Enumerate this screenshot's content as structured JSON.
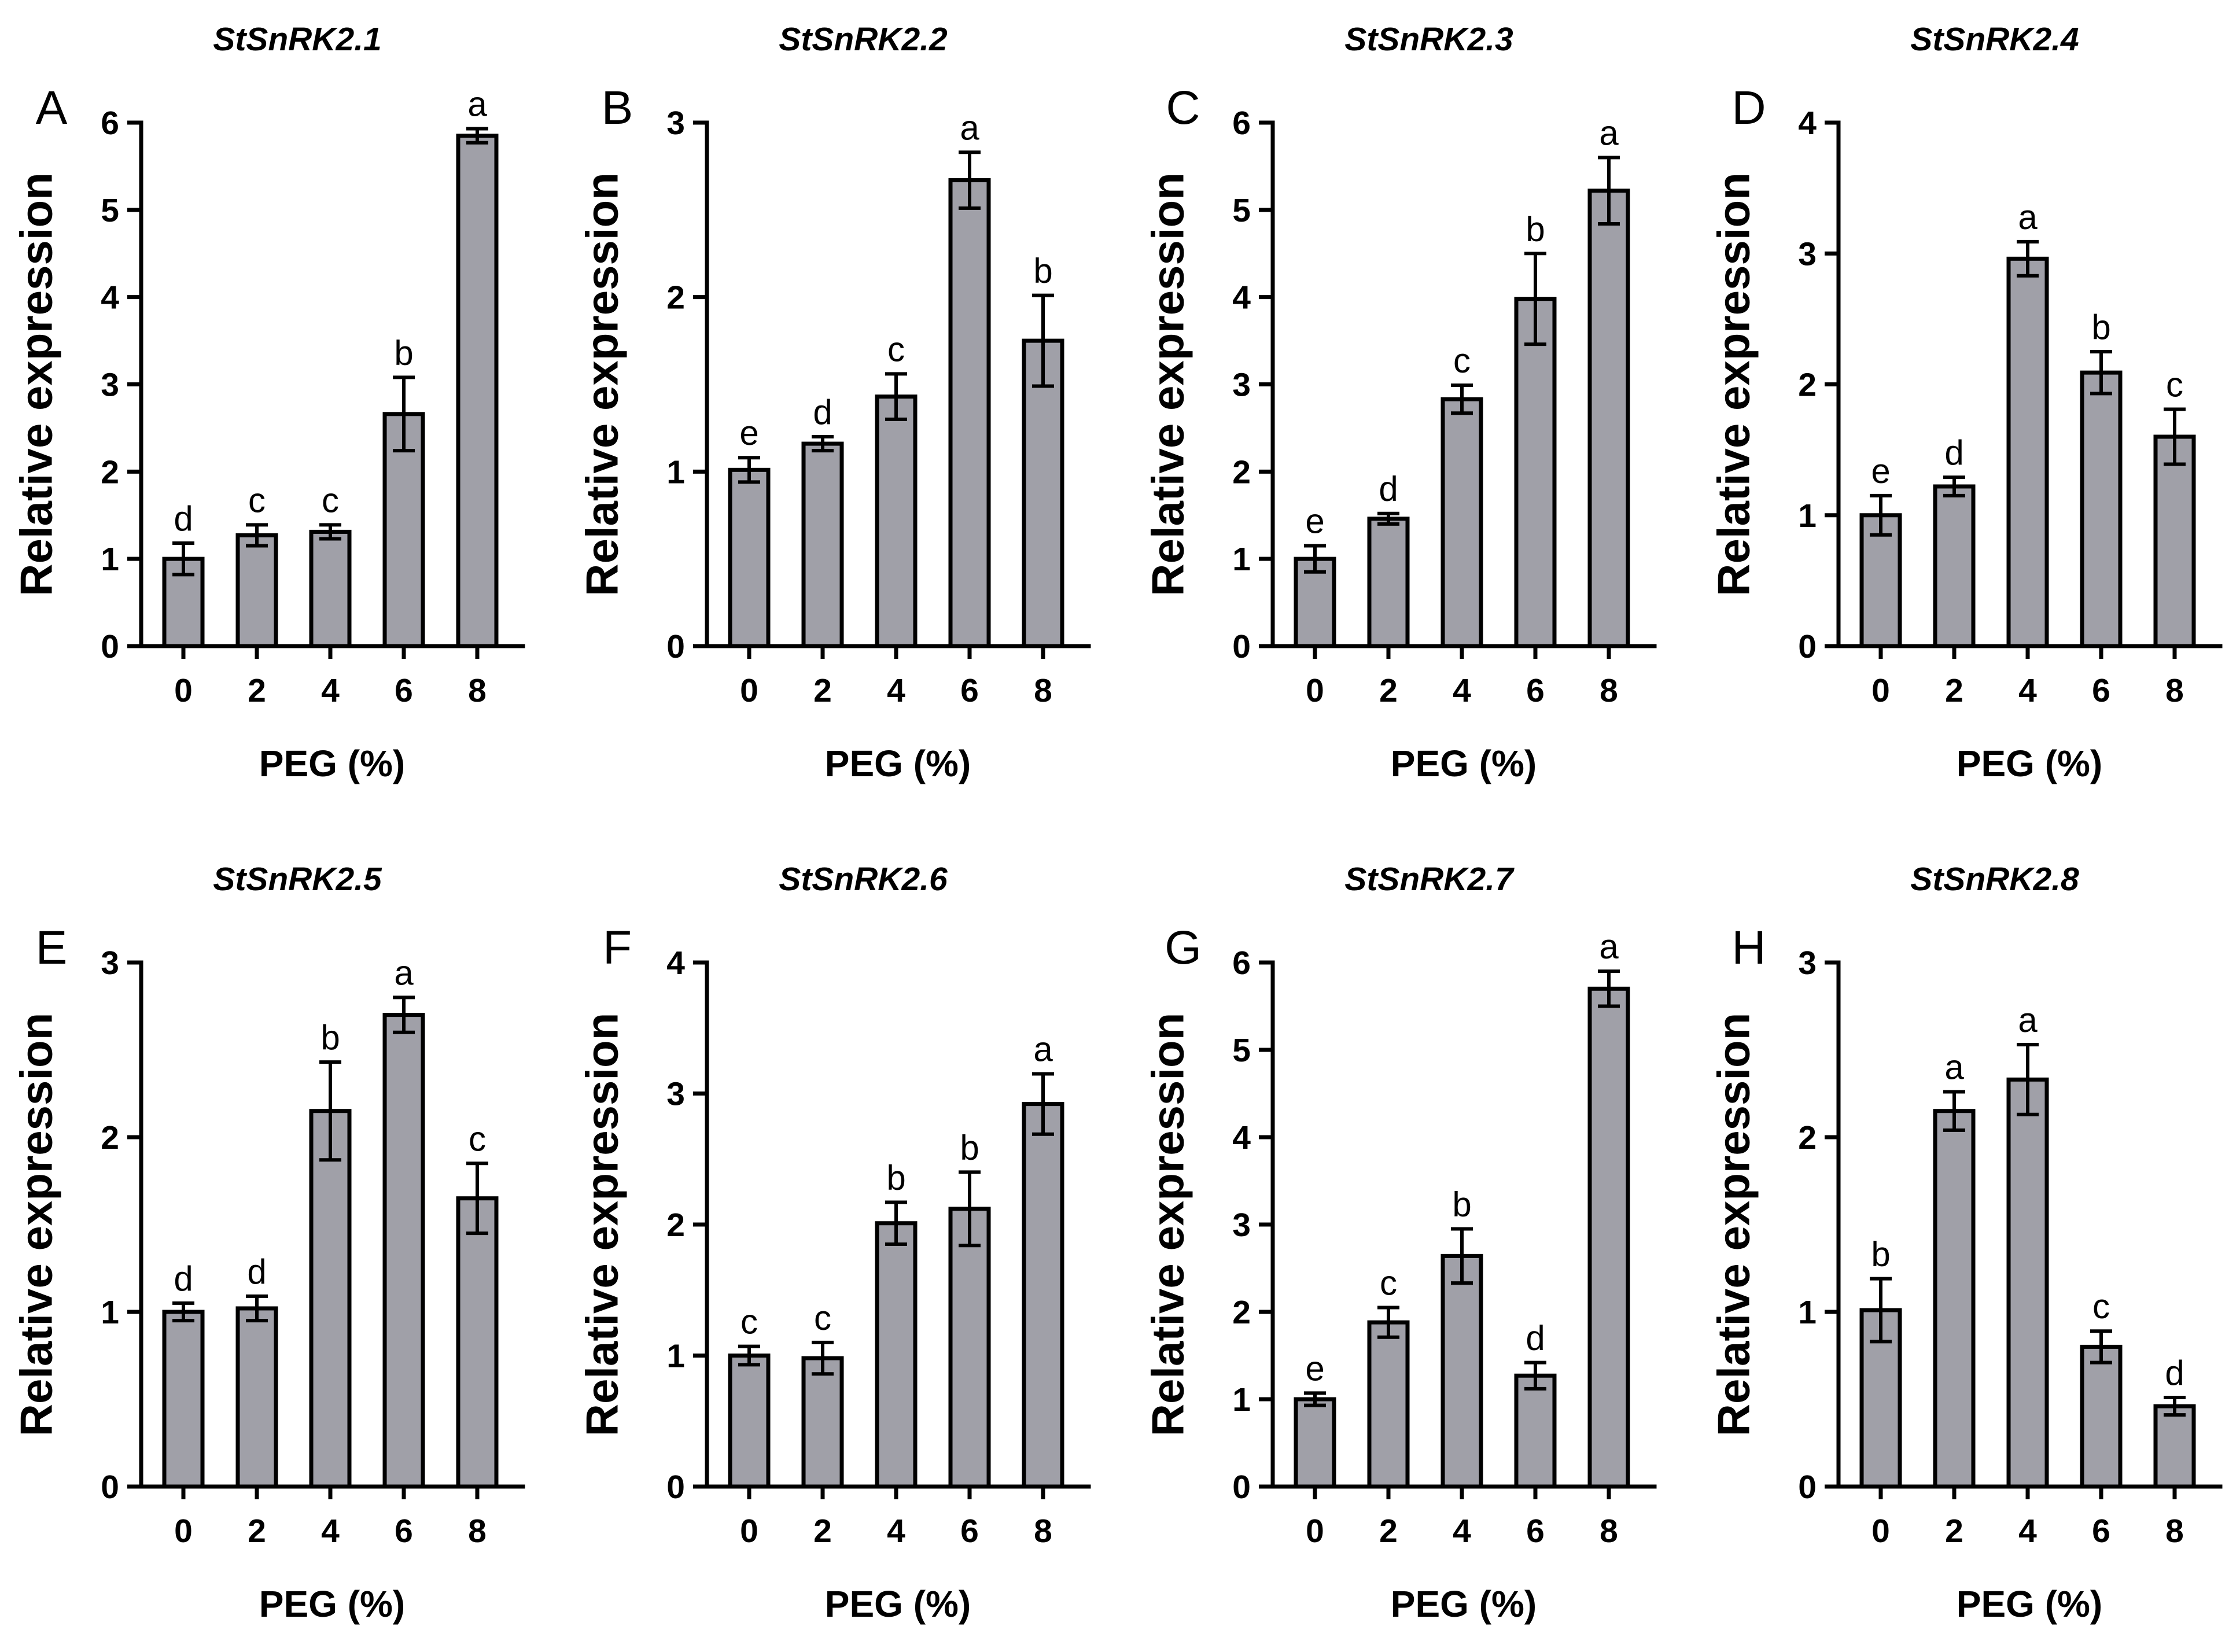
{
  "figure": {
    "bar_color": "#a0a0a8",
    "axis_color": "#000000"
  },
  "chart_data": [
    {
      "type": "bar",
      "panel": "A",
      "title": "StSnRK2.1",
      "xlabel": "PEG (%)",
      "ylabel": "Relative expression",
      "categories": [
        "0",
        "2",
        "4",
        "6",
        "8"
      ],
      "values": [
        1.0,
        1.27,
        1.31,
        2.66,
        5.85
      ],
      "errors": [
        0.18,
        0.12,
        0.08,
        0.42,
        0.08
      ],
      "significance": [
        "d",
        "c",
        "c",
        "b",
        "a"
      ],
      "ylim": [
        0,
        6
      ],
      "yticks": [
        0,
        1,
        2,
        3,
        4,
        5,
        6
      ]
    },
    {
      "type": "bar",
      "panel": "B",
      "title": "StSnRK2.2",
      "xlabel": "PEG (%)",
      "ylabel": "Relative expression",
      "categories": [
        "0",
        "2",
        "4",
        "6",
        "8"
      ],
      "values": [
        1.01,
        1.16,
        1.43,
        2.67,
        1.75
      ],
      "errors": [
        0.07,
        0.04,
        0.13,
        0.16,
        0.26
      ],
      "significance": [
        "e",
        "d",
        "c",
        "a",
        "b"
      ],
      "ylim": [
        0,
        3
      ],
      "yticks": [
        0,
        1,
        2,
        3
      ]
    },
    {
      "type": "bar",
      "panel": "C",
      "title": "StSnRK2.3",
      "xlabel": "PEG (%)",
      "ylabel": "Relative expression",
      "categories": [
        "0",
        "2",
        "4",
        "6",
        "8"
      ],
      "values": [
        1.0,
        1.46,
        2.83,
        3.98,
        5.22
      ],
      "errors": [
        0.15,
        0.06,
        0.16,
        0.52,
        0.38
      ],
      "significance": [
        "e",
        "d",
        "c",
        "b",
        "a"
      ],
      "ylim": [
        0,
        6
      ],
      "yticks": [
        0,
        1,
        2,
        3,
        4,
        5,
        6
      ]
    },
    {
      "type": "bar",
      "panel": "D",
      "title": "StSnRK2.4",
      "xlabel": "PEG (%)",
      "ylabel": "Relative expression",
      "categories": [
        "0",
        "2",
        "4",
        "6",
        "8"
      ],
      "values": [
        1.0,
        1.22,
        2.96,
        2.09,
        1.6
      ],
      "errors": [
        0.15,
        0.07,
        0.13,
        0.16,
        0.21
      ],
      "significance": [
        "e",
        "d",
        "a",
        "b",
        "c"
      ],
      "ylim": [
        0,
        4
      ],
      "yticks": [
        0,
        1,
        2,
        3,
        4
      ]
    },
    {
      "type": "bar",
      "panel": "E",
      "title": "StSnRK2.5",
      "xlabel": "PEG (%)",
      "ylabel": "Relative expression",
      "categories": [
        "0",
        "2",
        "4",
        "6",
        "8"
      ],
      "values": [
        1.0,
        1.02,
        2.15,
        2.7,
        1.65
      ],
      "errors": [
        0.05,
        0.07,
        0.28,
        0.1,
        0.2
      ],
      "significance": [
        "d",
        "d",
        "b",
        "a",
        "c"
      ],
      "ylim": [
        0,
        3
      ],
      "yticks": [
        0,
        1,
        2,
        3
      ]
    },
    {
      "type": "bar",
      "panel": "F",
      "title": "StSnRK2.6",
      "xlabel": "PEG (%)",
      "ylabel": "Relative expression",
      "categories": [
        "0",
        "2",
        "4",
        "6",
        "8"
      ],
      "values": [
        1.0,
        0.98,
        2.01,
        2.12,
        2.92
      ],
      "errors": [
        0.07,
        0.12,
        0.16,
        0.28,
        0.23
      ],
      "significance": [
        "c",
        "c",
        "b",
        "b",
        "a"
      ],
      "ylim": [
        0,
        4
      ],
      "yticks": [
        0,
        1,
        2,
        3,
        4
      ]
    },
    {
      "type": "bar",
      "panel": "G",
      "title": "StSnRK2.7",
      "xlabel": "PEG (%)",
      "ylabel": "Relative expression",
      "categories": [
        "0",
        "2",
        "4",
        "6",
        "8"
      ],
      "values": [
        1.0,
        1.88,
        2.64,
        1.27,
        5.7
      ],
      "errors": [
        0.07,
        0.17,
        0.31,
        0.15,
        0.2
      ],
      "significance": [
        "e",
        "c",
        "b",
        "d",
        "a"
      ],
      "ylim": [
        0,
        6
      ],
      "yticks": [
        0,
        1,
        2,
        3,
        4,
        5,
        6
      ]
    },
    {
      "type": "bar",
      "panel": "H",
      "title": "StSnRK2.8",
      "xlabel": "PEG (%)",
      "ylabel": "Relative expression",
      "categories": [
        "0",
        "2",
        "4",
        "6",
        "8"
      ],
      "values": [
        1.01,
        2.15,
        2.33,
        0.8,
        0.46
      ],
      "errors": [
        0.18,
        0.11,
        0.2,
        0.09,
        0.05
      ],
      "significance": [
        "b",
        "a",
        "a",
        "c",
        "d"
      ],
      "ylim": [
        0,
        3
      ],
      "yticks": [
        0,
        1,
        2,
        3
      ]
    }
  ]
}
